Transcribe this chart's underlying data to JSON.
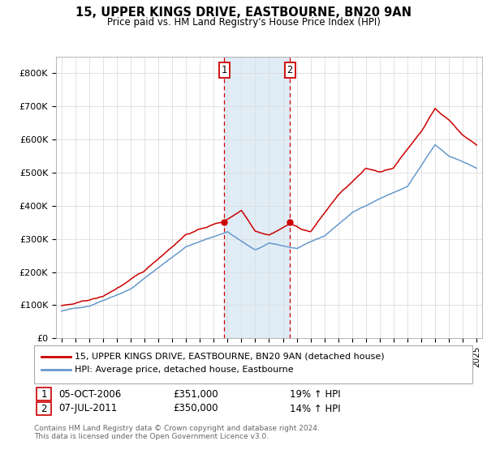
{
  "title": "15, UPPER KINGS DRIVE, EASTBOURNE, BN20 9AN",
  "subtitle": "Price paid vs. HM Land Registry's House Price Index (HPI)",
  "sale1_date": "05-OCT-2006",
  "sale1_price": 351000,
  "sale1_hpi": "19% ↑ HPI",
  "sale2_date": "07-JUL-2011",
  "sale2_price": 350000,
  "sale2_hpi": "14% ↑ HPI",
  "legend_line1": "15, UPPER KINGS DRIVE, EASTBOURNE, BN20 9AN (detached house)",
  "legend_line2": "HPI: Average price, detached house, Eastbourne",
  "footer": "Contains HM Land Registry data © Crown copyright and database right 2024.\nThis data is licensed under the Open Government Licence v3.0.",
  "red_color": "#cc0000",
  "blue_color": "#6699cc",
  "shade_color": "#cce0f0",
  "vline_color": "#cc0000",
  "ylim": [
    0,
    850000
  ],
  "yticks": [
    0,
    100000,
    200000,
    300000,
    400000,
    500000,
    600000,
    700000,
    800000
  ],
  "ytick_labels": [
    "£0",
    "£100K",
    "£200K",
    "£300K",
    "£400K",
    "£500K",
    "£600K",
    "£700K",
    "£800K"
  ],
  "sale1_x": 2006.75,
  "sale2_x": 2011.5,
  "xlim_left": 1994.6,
  "xlim_right": 2025.4
}
